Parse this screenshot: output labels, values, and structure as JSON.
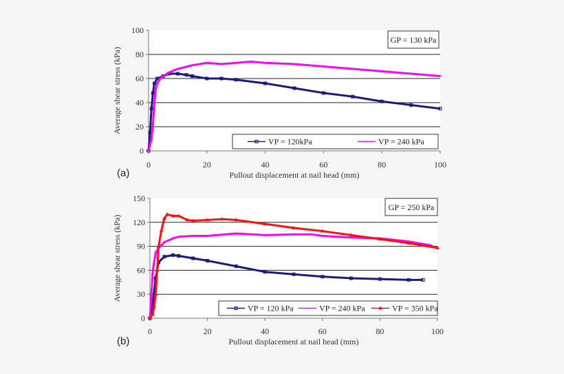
{
  "chart_data": [
    {
      "type": "line",
      "panel_label": "(a)",
      "annotation": "GP = 130 kPa",
      "xlabel": "Pullout displacement at nail head (mm)",
      "ylabel": "Average shear stress (kPa)",
      "xlim": [
        0,
        100
      ],
      "ylim": [
        0,
        100
      ],
      "xticks": [
        0,
        20,
        40,
        60,
        80,
        100
      ],
      "yticks": [
        0,
        20,
        40,
        60,
        80,
        100
      ],
      "grid": "horizontal",
      "legend_position": "bottom-right",
      "series": [
        {
          "name": "VP = 120kPa",
          "color": "#1a1a7a",
          "marker": "square",
          "x": [
            0,
            0.5,
            1,
            1.5,
            2,
            3,
            5,
            7,
            10,
            13,
            15,
            20,
            25,
            30,
            40,
            50,
            60,
            70,
            80,
            90,
            100
          ],
          "y": [
            0,
            15,
            35,
            48,
            56,
            60,
            62,
            64,
            64,
            63,
            62,
            60,
            60,
            59,
            56,
            52,
            48,
            45,
            41,
            38,
            35
          ]
        },
        {
          "name": "VP = 240 kPa",
          "color": "#ff00ff",
          "marker": "dash",
          "x": [
            0,
            1,
            1.5,
            2,
            2.5,
            3,
            4,
            5,
            7,
            10,
            15,
            20,
            25,
            30,
            35,
            40,
            50,
            60,
            70,
            80,
            90,
            100
          ],
          "y": [
            0,
            10,
            22,
            40,
            52,
            56,
            60,
            62,
            65,
            68,
            71,
            73,
            72,
            73,
            74,
            73,
            72,
            70,
            68,
            66,
            64,
            62
          ]
        }
      ]
    },
    {
      "type": "line",
      "panel_label": "(b)",
      "annotation": "GP = 250 kPa",
      "xlabel": "Pullout displacement at nail head (mm)",
      "ylabel": "Average shear stress (kPa)",
      "xlim": [
        0,
        100
      ],
      "ylim": [
        0,
        150
      ],
      "xticks": [
        0,
        20,
        40,
        60,
        80,
        100
      ],
      "yticks": [
        0,
        30,
        60,
        90,
        120,
        150
      ],
      "grid": "horizontal",
      "legend_position": "bottom-right",
      "series": [
        {
          "name": "VP = 120 kPa",
          "color": "#1a1a7a",
          "marker": "square",
          "x": [
            0,
            1,
            2,
            3,
            5,
            8,
            10,
            15,
            20,
            30,
            40,
            50,
            60,
            70,
            80,
            90,
            95
          ],
          "y": [
            0,
            20,
            50,
            70,
            77,
            79,
            78,
            75,
            72,
            65,
            58,
            55,
            52,
            50,
            49,
            48,
            48
          ]
        },
        {
          "name": "VP = 240 kPa",
          "color": "#ff00ff",
          "marker": "dash",
          "x": [
            0,
            0.5,
            1,
            2,
            3,
            5,
            8,
            10,
            15,
            20,
            30,
            40,
            50,
            56,
            60,
            70,
            80,
            90,
            98
          ],
          "y": [
            0,
            30,
            60,
            82,
            88,
            95,
            100,
            102,
            103,
            103,
            106,
            104,
            105,
            105,
            103,
            101,
            100,
            96,
            91
          ]
        },
        {
          "name": "VP = 350 kPa",
          "color": "#ff1010",
          "marker": "triangle",
          "x": [
            0,
            1,
            1.5,
            2,
            2.5,
            3,
            4,
            5,
            6,
            8,
            10,
            13,
            15,
            20,
            25,
            30,
            40,
            50,
            60,
            70,
            80,
            90,
            100
          ],
          "y": [
            0,
            5,
            15,
            30,
            60,
            90,
            110,
            125,
            130,
            128,
            128,
            123,
            122,
            123,
            124,
            123,
            118,
            113,
            109,
            104,
            99,
            94,
            88
          ]
        }
      ]
    }
  ]
}
